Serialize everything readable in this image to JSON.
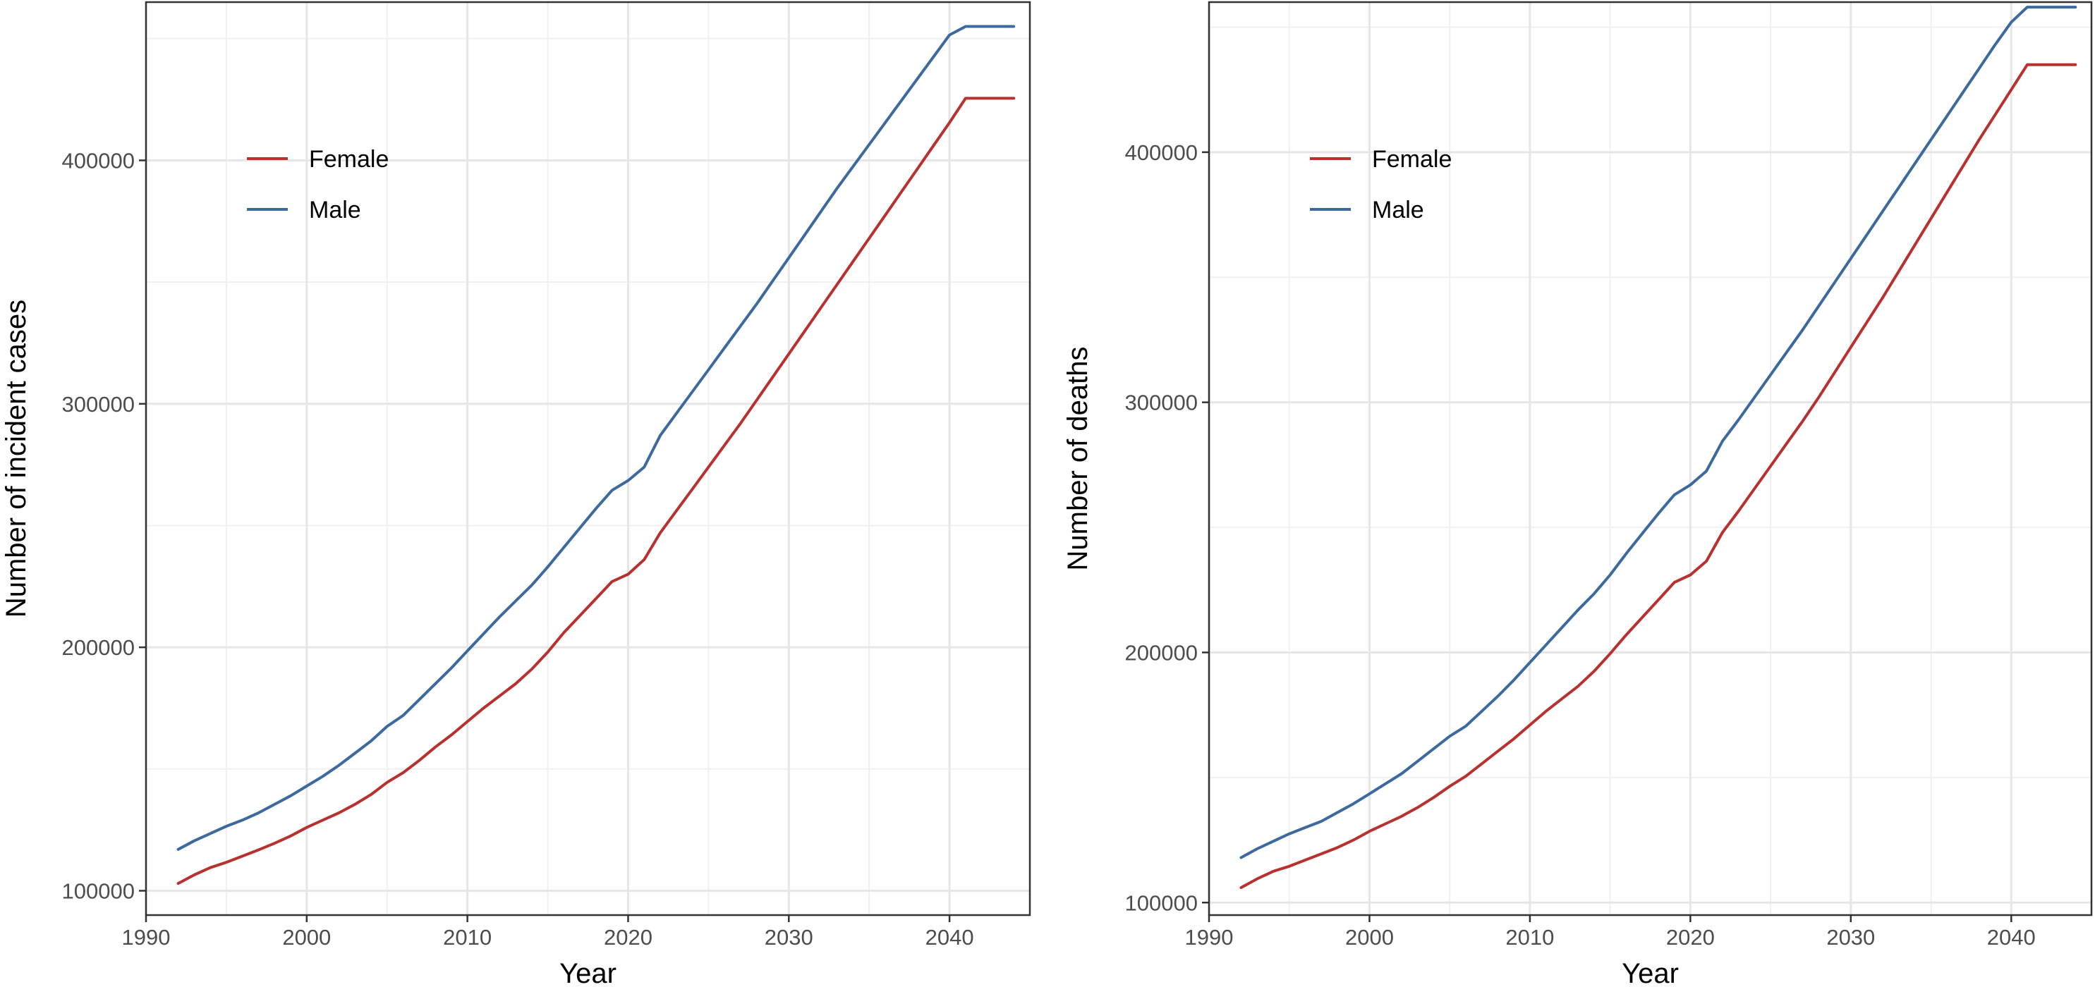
{
  "chart_data": [
    {
      "type": "line",
      "xlabel": "Year",
      "ylabel": "Number of incident cases",
      "xlim": [
        1990,
        2045
      ],
      "ylim": [
        90000,
        465000
      ],
      "xticks": [
        1990,
        2000,
        2010,
        2020,
        2030,
        2040
      ],
      "yticks": [
        100000,
        200000,
        300000,
        400000
      ],
      "grid": true,
      "legend_position": "top-left",
      "x": [
        1992,
        1993,
        1994,
        1995,
        1996,
        1997,
        1998,
        1999,
        2000,
        2001,
        2002,
        2003,
        2004,
        2005,
        2006,
        2007,
        2008,
        2009,
        2010,
        2011,
        2012,
        2013,
        2014,
        2015,
        2016,
        2017,
        2018,
        2019,
        2020,
        2021,
        2022,
        2023,
        2024,
        2025,
        2026,
        2027,
        2028,
        2029,
        2030,
        2031,
        2032,
        2033,
        2034,
        2035,
        2036,
        2037,
        2038,
        2039,
        2040,
        2041,
        2042,
        2043,
        2044
      ],
      "series": [
        {
          "name": "Female",
          "color": "#b8312f",
          "values": [
            103000,
            106500,
            109500,
            111700,
            114200,
            116800,
            119500,
            122500,
            126000,
            129000,
            132000,
            135500,
            139500,
            144500,
            148500,
            153500,
            159000,
            164000,
            169500,
            175000,
            180000,
            185000,
            191000,
            198000,
            206000,
            213000,
            220000,
            227000,
            230000,
            236000,
            247000,
            256000,
            265000,
            274000,
            283000,
            292000,
            301500,
            311000,
            320500,
            330000,
            339500,
            349000,
            358500,
            368000,
            377500,
            387000,
            396500,
            406000,
            415500,
            425500,
            425500,
            425500,
            425500
          ]
        },
        {
          "name": "Male",
          "color": "#3c6a9e",
          "values": [
            117000,
            120500,
            123500,
            126500,
            129000,
            132000,
            135500,
            139000,
            143000,
            147000,
            151500,
            156500,
            161500,
            167500,
            172000,
            178500,
            185000,
            191500,
            198500,
            205500,
            212500,
            219000,
            225500,
            233000,
            241000,
            249000,
            257000,
            264500,
            268500,
            274000,
            287000,
            296000,
            305000,
            314000,
            323000,
            332000,
            341000,
            350500,
            360000,
            369500,
            379000,
            388500,
            397500,
            406500,
            415500,
            424500,
            433500,
            442500,
            451500,
            455000,
            455000,
            455000,
            455000
          ]
        }
      ]
    },
    {
      "type": "line",
      "xlabel": "Year",
      "ylabel": "Number of deaths",
      "xlim": [
        1990,
        2045
      ],
      "ylim": [
        95000,
        460000
      ],
      "xticks": [
        1990,
        2000,
        2010,
        2020,
        2030,
        2040
      ],
      "yticks": [
        100000,
        200000,
        300000,
        400000
      ],
      "grid": true,
      "legend_position": "top-left",
      "x": [
        1992,
        1993,
        1994,
        1995,
        1996,
        1997,
        1998,
        1999,
        2000,
        2001,
        2002,
        2003,
        2004,
        2005,
        2006,
        2007,
        2008,
        2009,
        2010,
        2011,
        2012,
        2013,
        2014,
        2015,
        2016,
        2017,
        2018,
        2019,
        2020,
        2021,
        2022,
        2023,
        2024,
        2025,
        2026,
        2027,
        2028,
        2029,
        2030,
        2031,
        2032,
        2033,
        2034,
        2035,
        2036,
        2037,
        2038,
        2039,
        2040,
        2041,
        2042,
        2043,
        2044
      ],
      "series": [
        {
          "name": "Female",
          "color": "#b8312f",
          "values": [
            106000,
            109500,
            112500,
            114500,
            117000,
            119500,
            122000,
            125000,
            128500,
            131500,
            134500,
            138000,
            142000,
            146500,
            150500,
            155500,
            160500,
            165500,
            171000,
            176500,
            181500,
            186500,
            192500,
            199500,
            207000,
            214000,
            221000,
            228000,
            231000,
            236500,
            248000,
            256500,
            265500,
            274500,
            283500,
            292500,
            302000,
            312000,
            322000,
            332000,
            342000,
            352500,
            363000,
            373500,
            384000,
            394500,
            405000,
            415000,
            425000,
            435000,
            435000,
            435000,
            435000
          ]
        },
        {
          "name": "Male",
          "color": "#3c6a9e",
          "values": [
            118000,
            121500,
            124500,
            127500,
            130000,
            132500,
            136000,
            139500,
            143500,
            147500,
            151500,
            156500,
            161500,
            166500,
            170500,
            176500,
            182500,
            189000,
            196000,
            203000,
            210000,
            217000,
            223500,
            231000,
            239500,
            247500,
            255500,
            263000,
            267000,
            272500,
            284500,
            293000,
            302000,
            311000,
            320000,
            329000,
            338500,
            348000,
            357500,
            367000,
            376500,
            386000,
            395500,
            405000,
            414500,
            424000,
            433500,
            443000,
            452000,
            458000,
            458000,
            458000,
            458000
          ]
        }
      ]
    }
  ]
}
